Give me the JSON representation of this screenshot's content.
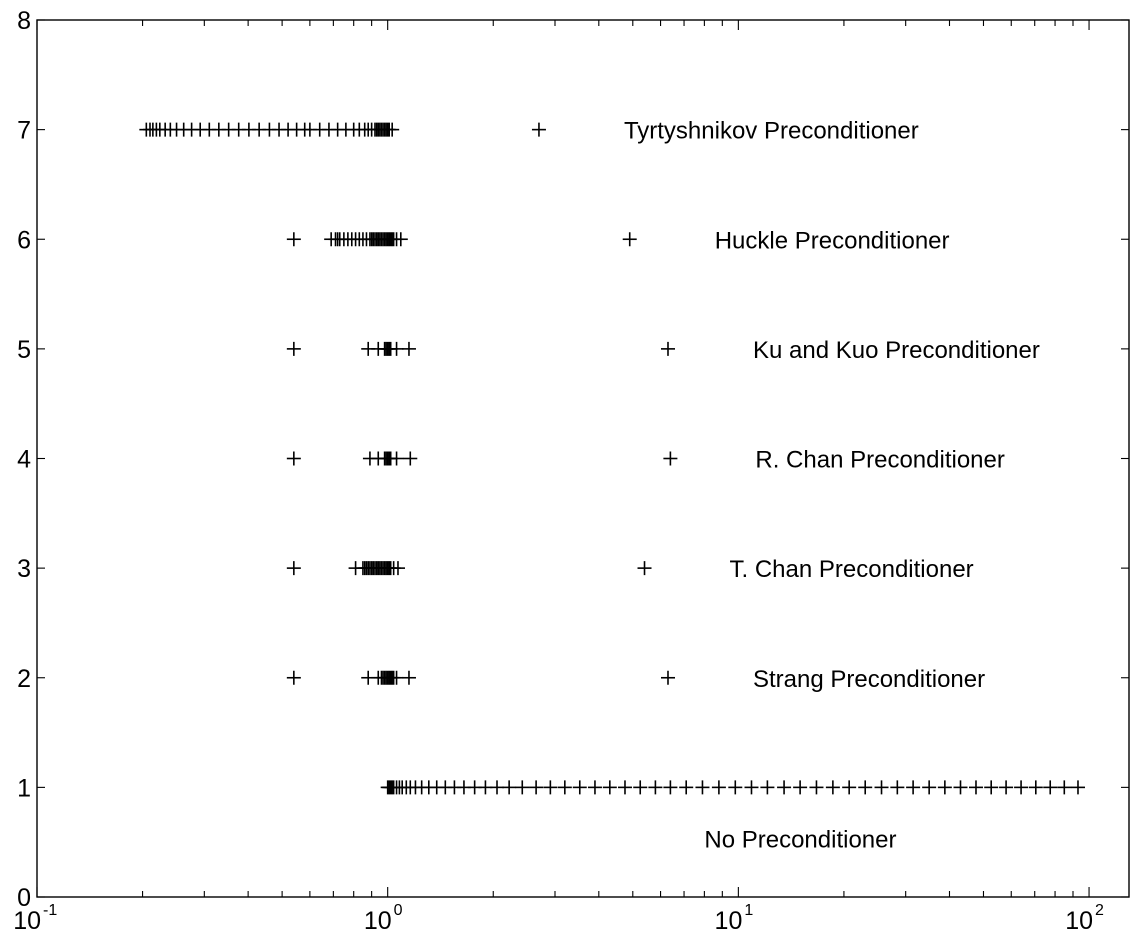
{
  "chart_data": {
    "type": "scatter",
    "title": "",
    "xlabel": "",
    "ylabel": "",
    "xscale": "log",
    "xlim": [
      0.1,
      130
    ],
    "ylim": [
      0,
      8
    ],
    "grid": false,
    "marker": "+",
    "x_ticks": [
      {
        "base": "10",
        "exp": "-1",
        "value": 0.1
      },
      {
        "base": "10",
        "exp": "0",
        "value": 1
      },
      {
        "base": "10",
        "exp": "1",
        "value": 10
      },
      {
        "base": "10",
        "exp": "2",
        "value": 100
      }
    ],
    "y_ticks": [
      "0",
      "1",
      "2",
      "3",
      "4",
      "5",
      "6",
      "7",
      "8"
    ],
    "series": [
      {
        "name": "No Preconditioner",
        "y": 1,
        "label_position": "below",
        "x": [
          1.0,
          1.01,
          1.02,
          1.03,
          1.04,
          1.06,
          1.08,
          1.1,
          1.13,
          1.16,
          1.2,
          1.25,
          1.31,
          1.38,
          1.46,
          1.55,
          1.65,
          1.77,
          1.9,
          2.05,
          2.22,
          2.42,
          2.65,
          2.91,
          3.2,
          3.53,
          3.9,
          4.3,
          4.75,
          5.25,
          5.8,
          6.4,
          7.1,
          7.9,
          8.8,
          9.8,
          10.9,
          12.1,
          13.5,
          15.0,
          16.7,
          18.6,
          20.7,
          23.0,
          25.6,
          28.4,
          31.5,
          35.0,
          38.8,
          43.0,
          47.6,
          52.6,
          58.0,
          64.0,
          70.5,
          77.5,
          85.0,
          93.0
        ]
      },
      {
        "name": "Strang Preconditioner",
        "y": 2,
        "label_position": "right",
        "x": [
          0.54,
          0.88,
          0.94,
          0.96,
          0.97,
          0.98,
          0.99,
          1.0,
          1.01,
          1.02,
          1.03,
          1.04,
          1.06,
          1.15,
          6.3
        ]
      },
      {
        "name": "T. Chan Preconditioner",
        "y": 3,
        "label_position": "right",
        "x": [
          0.54,
          0.81,
          0.85,
          0.86,
          0.87,
          0.88,
          0.89,
          0.9,
          0.91,
          0.92,
          0.93,
          0.94,
          0.95,
          0.96,
          0.97,
          0.98,
          0.99,
          1.0,
          1.01,
          1.02,
          1.04,
          1.07,
          5.4
        ]
      },
      {
        "name": "R. Chan Preconditioner",
        "y": 4,
        "label_position": "right",
        "x": [
          0.54,
          0.89,
          0.94,
          0.98,
          0.99,
          1.0,
          1.01,
          1.02,
          1.06,
          1.16,
          6.4
        ]
      },
      {
        "name": "Ku and Kuo Preconditioner",
        "y": 5,
        "label_position": "right",
        "x": [
          0.54,
          0.88,
          0.94,
          0.98,
          0.99,
          1.0,
          1.01,
          1.02,
          1.06,
          1.15,
          6.3
        ]
      },
      {
        "name": "Huckle Preconditioner",
        "y": 6,
        "label_position": "right",
        "x": [
          0.54,
          0.69,
          0.71,
          0.72,
          0.73,
          0.75,
          0.77,
          0.79,
          0.81,
          0.83,
          0.85,
          0.87,
          0.89,
          0.9,
          0.91,
          0.92,
          0.93,
          0.94,
          0.95,
          0.96,
          0.97,
          0.98,
          0.99,
          1.0,
          1.01,
          1.02,
          1.03,
          1.04,
          1.06,
          1.09,
          4.9
        ]
      },
      {
        "name": "Tyrtyshnikov Preconditioner",
        "y": 7,
        "label_position": "right",
        "x": [
          0.205,
          0.21,
          0.214,
          0.219,
          0.224,
          0.232,
          0.24,
          0.25,
          0.262,
          0.276,
          0.292,
          0.31,
          0.33,
          0.352,
          0.376,
          0.402,
          0.43,
          0.46,
          0.49,
          0.52,
          0.55,
          0.58,
          0.6,
          0.64,
          0.68,
          0.72,
          0.76,
          0.8,
          0.83,
          0.86,
          0.88,
          0.9,
          0.92,
          0.93,
          0.94,
          0.95,
          0.96,
          0.97,
          0.98,
          0.99,
          1.0,
          1.01,
          1.03,
          2.7
        ]
      }
    ]
  }
}
